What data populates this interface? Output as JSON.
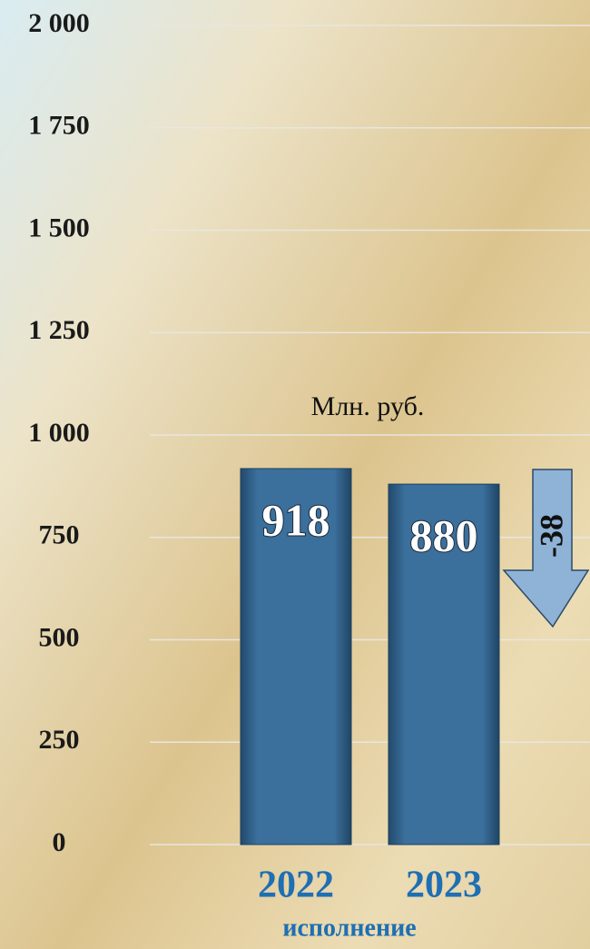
{
  "chart_data": {
    "type": "bar",
    "unit_label": "Млн. руб.",
    "subtitle": "исполнение",
    "annotation": "-38",
    "categories": [
      "2022",
      "2023"
    ],
    "values": [
      918,
      880
    ],
    "color": "#2f628e",
    "ylim": [
      0,
      2000
    ],
    "yticks": [
      0,
      250,
      500,
      750,
      {
        "value": 1000,
        "label": "1 000"
      },
      {
        "value": 1250,
        "label": "1 250"
      },
      {
        "value": 1500,
        "label": "1 500"
      },
      {
        "value": 1750,
        "label": "1 750"
      },
      {
        "value": 2000,
        "label": "2 000"
      }
    ],
    "grid": true
  }
}
